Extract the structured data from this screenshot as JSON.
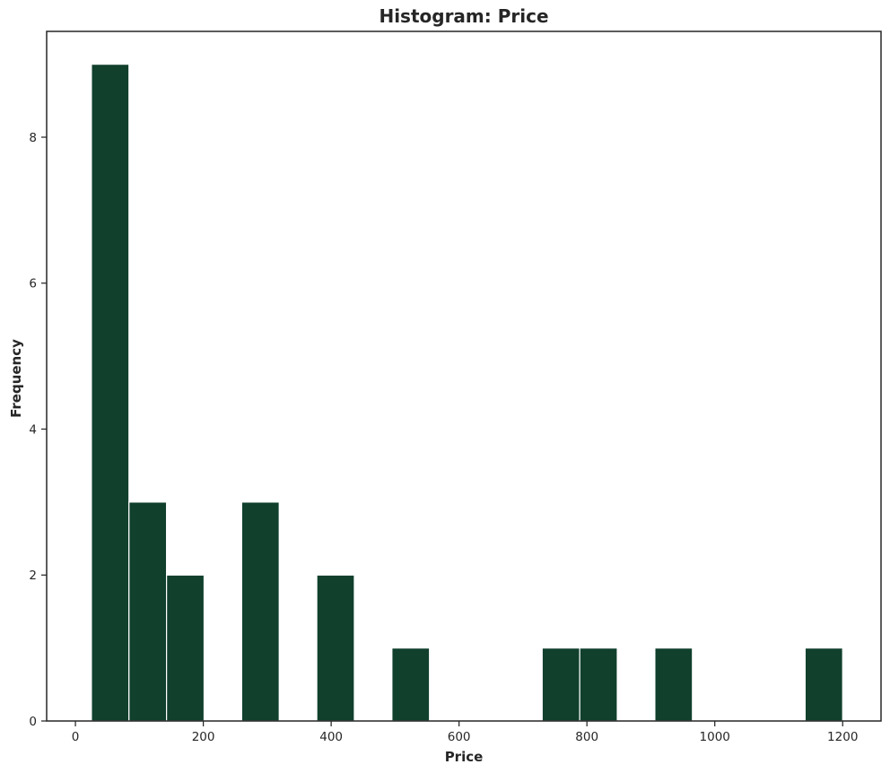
{
  "chart_data": {
    "type": "bar",
    "subtype": "histogram",
    "title": "Histogram: Price",
    "xlabel": "Price",
    "ylabel": "Frequency",
    "bar_color": "#11402d",
    "xlim": [
      -45,
      1260
    ],
    "ylim": [
      0,
      9.45
    ],
    "xticks": [
      0,
      200,
      400,
      600,
      800,
      1000,
      1200
    ],
    "yticks": [
      0,
      2,
      4,
      6,
      8
    ],
    "grid": false,
    "legend": "none",
    "bins": [
      {
        "start": 25,
        "end": 83.75,
        "count": 9
      },
      {
        "start": 83.75,
        "end": 142.5,
        "count": 3
      },
      {
        "start": 142.5,
        "end": 201.25,
        "count": 2
      },
      {
        "start": 201.25,
        "end": 260,
        "count": 0
      },
      {
        "start": 260,
        "end": 318.75,
        "count": 3
      },
      {
        "start": 318.75,
        "end": 377.5,
        "count": 0
      },
      {
        "start": 377.5,
        "end": 436.25,
        "count": 2
      },
      {
        "start": 436.25,
        "end": 495,
        "count": 0
      },
      {
        "start": 495,
        "end": 553.75,
        "count": 1
      },
      {
        "start": 553.75,
        "end": 612.5,
        "count": 0
      },
      {
        "start": 612.5,
        "end": 671.25,
        "count": 0
      },
      {
        "start": 671.25,
        "end": 730,
        "count": 0
      },
      {
        "start": 730,
        "end": 788.75,
        "count": 1
      },
      {
        "start": 788.75,
        "end": 847.5,
        "count": 1
      },
      {
        "start": 847.5,
        "end": 906.25,
        "count": 0
      },
      {
        "start": 906.25,
        "end": 965,
        "count": 1
      },
      {
        "start": 965,
        "end": 1023.75,
        "count": 0
      },
      {
        "start": 1023.75,
        "end": 1082.5,
        "count": 0
      },
      {
        "start": 1082.5,
        "end": 1141.25,
        "count": 0
      },
      {
        "start": 1141.25,
        "end": 1200,
        "count": 1
      }
    ]
  }
}
